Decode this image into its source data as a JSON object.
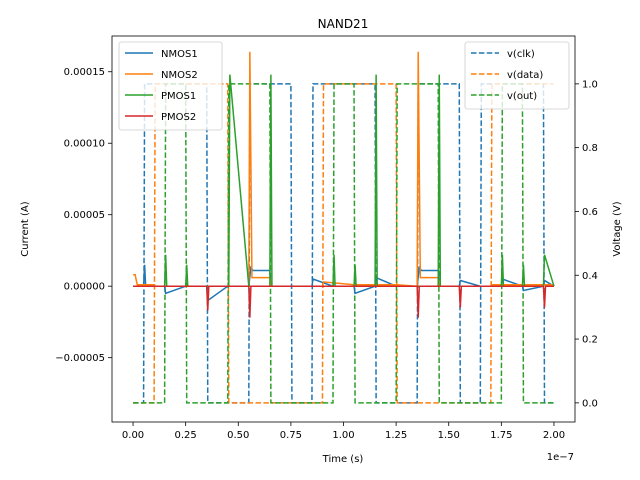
{
  "chart_data": {
    "type": "line",
    "title": "NAND21",
    "xlabel": "Time (s)",
    "ylabel_left": "Current (A)",
    "ylabel_right": "Voltage (V)",
    "x_offset_label": "1e−7",
    "xlim": [
      -1e-08,
      2.1e-07
    ],
    "ylim_left": [
      -9.5e-05,
      0.000175
    ],
    "ylim_right": [
      -0.06,
      1.15
    ],
    "x_ticks": [
      0,
      2.5e-08,
      5e-08,
      7.5e-08,
      1e-07,
      1.25e-07,
      1.5e-07,
      1.75e-07,
      2e-07
    ],
    "x_tick_labels": [
      "0.00",
      "0.25",
      "0.50",
      "0.75",
      "1.00",
      "1.25",
      "1.50",
      "1.75",
      "2.00"
    ],
    "y_left_ticks": [
      -5e-05,
      0,
      5e-05,
      0.0001,
      0.00015
    ],
    "y_left_tick_labels": [
      "−0.00005",
      "0.00000",
      "0.00005",
      "0.00010",
      "0.00015"
    ],
    "y_right_ticks": [
      0,
      0.2,
      0.4,
      0.6,
      0.8,
      1.0
    ],
    "y_right_tick_labels": [
      "0.0",
      "0.2",
      "0.4",
      "0.6",
      "0.8",
      "1.0"
    ],
    "legend_left": {
      "placement": "top-left",
      "items": [
        {
          "label": "NMOS1",
          "color": "#1f77b4",
          "style": "solid"
        },
        {
          "label": "NMOS2",
          "color": "#ff7f0e",
          "style": "solid"
        },
        {
          "label": "PMOS1",
          "color": "#2ca02c",
          "style": "solid"
        },
        {
          "label": "PMOS2",
          "color": "#d62728",
          "style": "solid"
        }
      ]
    },
    "legend_right": {
      "placement": "top-right",
      "items": [
        {
          "label": "v(clk)",
          "color": "#1f77b4",
          "style": "dashed"
        },
        {
          "label": "v(data)",
          "color": "#ff7f0e",
          "style": "dashed"
        },
        {
          "label": "v(out)",
          "color": "#2ca02c",
          "style": "dashed"
        }
      ]
    },
    "series_left": [
      {
        "name": "NMOS1",
        "color": "#1f77b4",
        "x": [
          0,
          5e-09,
          5.5e-09,
          6e-09,
          1.5e-08,
          1.55e-08,
          2.5e-08,
          2.55e-08,
          3.5e-08,
          3.55e-08,
          4.5e-08,
          4.55e-08,
          5.5e-08,
          5.6e-08,
          5.7e-08,
          6.5e-08,
          6.55e-08,
          7.5e-08,
          7.55e-08,
          8.5e-08,
          8.55e-08,
          9.5e-08,
          9.55e-08,
          1.05e-07,
          1.055e-07,
          1.15e-07,
          1.155e-07,
          1.25e-07,
          1.255e-07,
          1.35e-07,
          1.36e-07,
          1.37e-07,
          1.45e-07,
          1.455e-07,
          1.55e-07,
          1.555e-07,
          1.65e-07,
          1.655e-07,
          1.75e-07,
          1.755e-07,
          1.85e-07,
          1.855e-07,
          1.95e-07,
          1.955e-07,
          2e-07
        ],
        "y": [
          0,
          0,
          1.5e-05,
          0,
          0,
          -5e-06,
          0,
          0,
          0,
          -1e-05,
          0,
          0,
          0,
          1.3e-05,
          1.1e-05,
          1.1e-05,
          0,
          0,
          0,
          0,
          5e-06,
          0,
          0,
          0,
          -5e-06,
          0,
          6e-06,
          0,
          0,
          0,
          1.3e-05,
          1.1e-05,
          1.1e-05,
          0,
          0,
          4e-06,
          0,
          0,
          0,
          5e-06,
          0,
          -3e-06,
          0,
          4e-06,
          0
        ]
      },
      {
        "name": "NMOS2",
        "color": "#ff7f0e",
        "x": [
          0,
          1e-09,
          2e-09,
          1e-08,
          1.05e-08,
          1.5e-08,
          2.5e-08,
          3.5e-08,
          4.5e-08,
          5.5e-08,
          5.55e-08,
          5.65e-08,
          6.5e-08,
          6.55e-08,
          9e-08,
          9.05e-08,
          1.05e-07,
          1.25e-07,
          1.35e-07,
          1.355e-07,
          1.365e-07,
          1.45e-07,
          1.455e-07,
          1.7e-07,
          1.705e-07,
          2e-07
        ],
        "y": [
          8e-06,
          8e-06,
          1e-06,
          1e-06,
          0,
          0,
          0,
          0,
          0,
          0,
          0.000164,
          6e-06,
          6e-06,
          0,
          0,
          3e-06,
          1e-06,
          1e-06,
          0,
          0.000164,
          6e-06,
          6e-06,
          0,
          0,
          1e-06,
          1e-06
        ]
      },
      {
        "name": "PMOS1",
        "color": "#2ca02c",
        "x": [
          0,
          1.5e-08,
          1.55e-08,
          1.6e-08,
          2.5e-08,
          2.55e-08,
          2.6e-08,
          4.55e-08,
          4.6e-08,
          5.5e-08,
          6.5e-08,
          6.55e-08,
          6.6e-08,
          9.5e-08,
          9.55e-08,
          9.6e-08,
          1.05e-07,
          1.055e-07,
          1.06e-07,
          1.15e-07,
          1.155e-07,
          1.16e-07,
          1.25e-07,
          1.35e-07,
          1.45e-07,
          1.455e-07,
          1.46e-07,
          1.75e-07,
          1.755e-07,
          1.76e-07,
          1.85e-07,
          1.855e-07,
          1.86e-07,
          1.95e-07,
          1.955e-07,
          2e-07
        ],
        "y": [
          0,
          0,
          2.2e-05,
          0,
          0,
          1.5e-05,
          0,
          0,
          0.000148,
          0,
          0,
          0.000148,
          0,
          0,
          2.2e-05,
          0,
          0,
          1.5e-05,
          0,
          0,
          0.000148,
          0,
          0,
          0,
          0,
          0.000148,
          0,
          0,
          2.2e-05,
          0,
          0,
          1.5e-05,
          0,
          0,
          2.2e-05,
          0
        ]
      },
      {
        "name": "PMOS2",
        "color": "#d62728",
        "x": [
          0,
          3.5e-08,
          3.55e-08,
          3.6e-08,
          5.5e-08,
          5.55e-08,
          5.6e-08,
          8.5e-08,
          1.35e-07,
          1.355e-07,
          1.36e-07,
          1.55e-07,
          1.555e-07,
          1.56e-07,
          1.95e-07,
          1.955e-07,
          1.96e-07,
          2e-07
        ],
        "y": [
          0,
          0,
          -1.7e-05,
          0,
          0,
          -2.2e-05,
          0,
          0,
          0,
          -2.2e-05,
          0,
          0,
          -1.5e-05,
          0,
          0,
          -1.5e-05,
          0,
          0
        ]
      }
    ],
    "series_right": [
      {
        "name": "v(clk)",
        "color": "#1f77b4",
        "x": [
          0,
          5e-09,
          5.5e-09,
          3.5e-08,
          3.55e-08,
          5.5e-08,
          5.55e-08,
          7.5e-08,
          7.55e-08,
          8.5e-08,
          8.55e-08,
          1.15e-07,
          1.155e-07,
          1.35e-07,
          1.355e-07,
          1.55e-07,
          1.555e-07,
          1.65e-07,
          1.655e-07,
          1.95e-07,
          1.955e-07,
          2e-07
        ],
        "y": [
          0,
          0,
          1,
          1,
          0,
          0,
          1,
          1,
          0,
          0,
          1,
          1,
          0,
          0,
          1,
          1,
          0,
          0,
          1,
          1,
          0,
          0
        ]
      },
      {
        "name": "v(data)",
        "color": "#ff7f0e",
        "x": [
          0,
          1e-08,
          1.05e-08,
          4.5e-08,
          4.55e-08,
          9e-08,
          9.05e-08,
          1.25e-07,
          1.255e-07,
          1.7e-07,
          1.705e-07,
          2e-07
        ],
        "y": [
          0,
          0,
          1,
          1,
          0,
          0,
          1,
          1,
          0,
          0,
          1,
          1
        ]
      },
      {
        "name": "v(out)",
        "color": "#2ca02c",
        "x": [
          0,
          1.5e-08,
          1.55e-08,
          2.5e-08,
          2.55e-08,
          4.5e-08,
          4.55e-08,
          6.5e-08,
          6.55e-08,
          9.5e-08,
          9.55e-08,
          1.05e-07,
          1.055e-07,
          1.25e-07,
          1.255e-07,
          1.45e-07,
          1.455e-07,
          1.75e-07,
          1.755e-07,
          1.85e-07,
          1.855e-07,
          2e-07
        ],
        "y": [
          0,
          0,
          1,
          1,
          0,
          0,
          1,
          1,
          0,
          0,
          1,
          1,
          0,
          0,
          1,
          1,
          0,
          0,
          1,
          1,
          0,
          0
        ]
      }
    ]
  }
}
